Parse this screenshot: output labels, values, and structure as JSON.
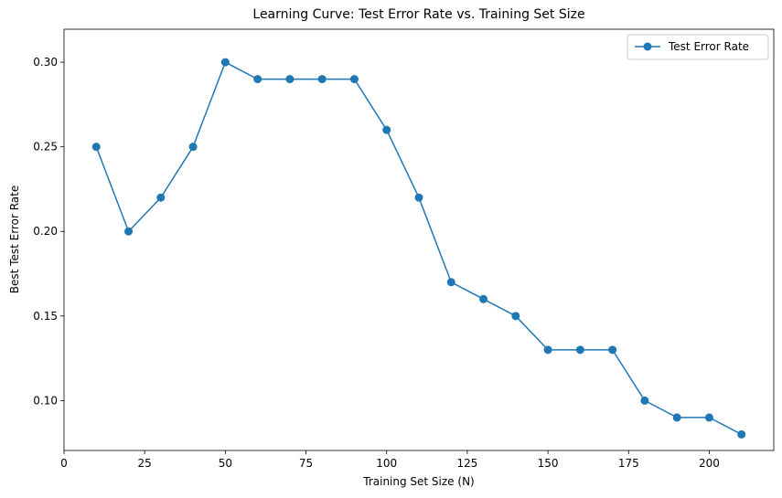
{
  "chart_data": {
    "type": "line",
    "title": "Learning Curve: Test Error Rate vs. Training Set Size",
    "xlabel": "Training Set Size (N)",
    "ylabel": "Best Test Error Rate",
    "xlim": [
      0,
      220
    ],
    "ylim": [
      0.0705,
      0.3195
    ],
    "x_ticks": [
      0,
      25,
      50,
      75,
      100,
      125,
      150,
      175,
      200
    ],
    "y_ticks": [
      0.1,
      0.15,
      0.2,
      0.25,
      0.3
    ],
    "x_tick_labels": [
      "0",
      "25",
      "50",
      "75",
      "100",
      "125",
      "150",
      "175",
      "200"
    ],
    "y_tick_labels": [
      "0.10",
      "0.15",
      "0.20",
      "0.25",
      "0.30"
    ],
    "grid": false,
    "legend_position": "top-right",
    "series": [
      {
        "name": "Test Error Rate",
        "color": "#1f77b4",
        "marker": "circle",
        "x": [
          10,
          20,
          30,
          40,
          50,
          60,
          70,
          80,
          90,
          100,
          110,
          120,
          130,
          140,
          150,
          160,
          170,
          180,
          190,
          200,
          210
        ],
        "y": [
          0.25,
          0.2,
          0.22,
          0.25,
          0.3,
          0.29,
          0.29,
          0.29,
          0.29,
          0.26,
          0.22,
          0.17,
          0.16,
          0.15,
          0.13,
          0.13,
          0.13,
          0.1,
          0.09,
          0.09,
          0.08
        ]
      }
    ]
  }
}
